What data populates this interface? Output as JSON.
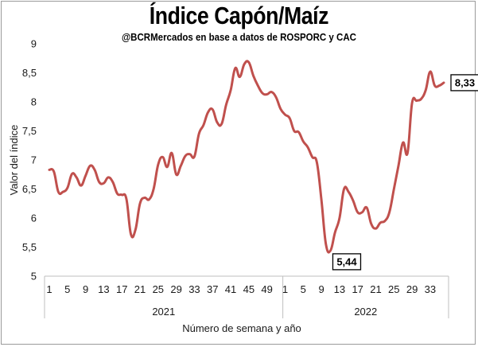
{
  "title": "Índice Capón/Maíz",
  "subtitle": "@BCRMercados en base a datos de ROSPORC y CAC",
  "chart_data": {
    "type": "line",
    "title": "Índice Capón/Maíz",
    "subtitle": "@BCRMercados en base a datos de ROSPORC y CAC",
    "xlabel": "Número de semana y año",
    "ylabel": "Valor del índice",
    "ylim": [
      5,
      9
    ],
    "yticks": [
      "5",
      "5,5",
      "6",
      "6,5",
      "7",
      "7,5",
      "8",
      "8,5",
      "9"
    ],
    "grid": false,
    "line_color": "#C0504D",
    "year_groups": [
      {
        "label": "2021",
        "weeks": 52
      },
      {
        "label": "2022",
        "weeks": 36
      }
    ],
    "xtick_labels": [
      "1",
      "5",
      "9",
      "13",
      "17",
      "21",
      "25",
      "29",
      "33",
      "37",
      "41",
      "45",
      "49",
      "1",
      "5",
      "9",
      "13",
      "17",
      "21",
      "25",
      "29",
      "33"
    ],
    "series": [
      {
        "values": [
          6.83,
          6.8,
          6.45,
          6.45,
          6.52,
          6.76,
          6.7,
          6.56,
          6.73,
          6.9,
          6.83,
          6.62,
          6.6,
          6.7,
          6.62,
          6.42,
          6.4,
          6.33,
          5.72,
          5.8,
          6.25,
          6.35,
          6.32,
          6.5,
          6.92,
          7.05,
          6.88,
          7.12,
          6.75,
          6.9,
          7.07,
          7.1,
          7.06,
          7.45,
          7.6,
          7.82,
          7.87,
          7.65,
          7.62,
          7.95,
          8.2,
          8.58,
          8.43,
          8.65,
          8.68,
          8.45,
          8.28,
          8.15,
          8.13,
          8.17,
          8.08,
          7.88,
          7.78,
          7.72,
          7.5,
          7.48,
          7.32,
          7.22,
          7.05,
          6.96,
          6.32,
          5.55,
          5.44,
          5.75,
          6.0,
          6.5,
          6.45,
          6.3,
          6.1,
          6.1,
          6.18,
          5.9,
          5.82,
          5.92,
          5.95,
          6.1,
          6.5,
          6.9,
          7.3,
          7.12,
          7.98,
          8.02,
          8.05,
          8.2,
          8.52,
          8.28,
          8.28,
          8.33
        ]
      }
    ],
    "annotations": [
      {
        "label": "5,44",
        "week_index": 62,
        "value": 5.44
      },
      {
        "label": "8,33",
        "week_index": 87,
        "value": 8.33
      }
    ]
  }
}
